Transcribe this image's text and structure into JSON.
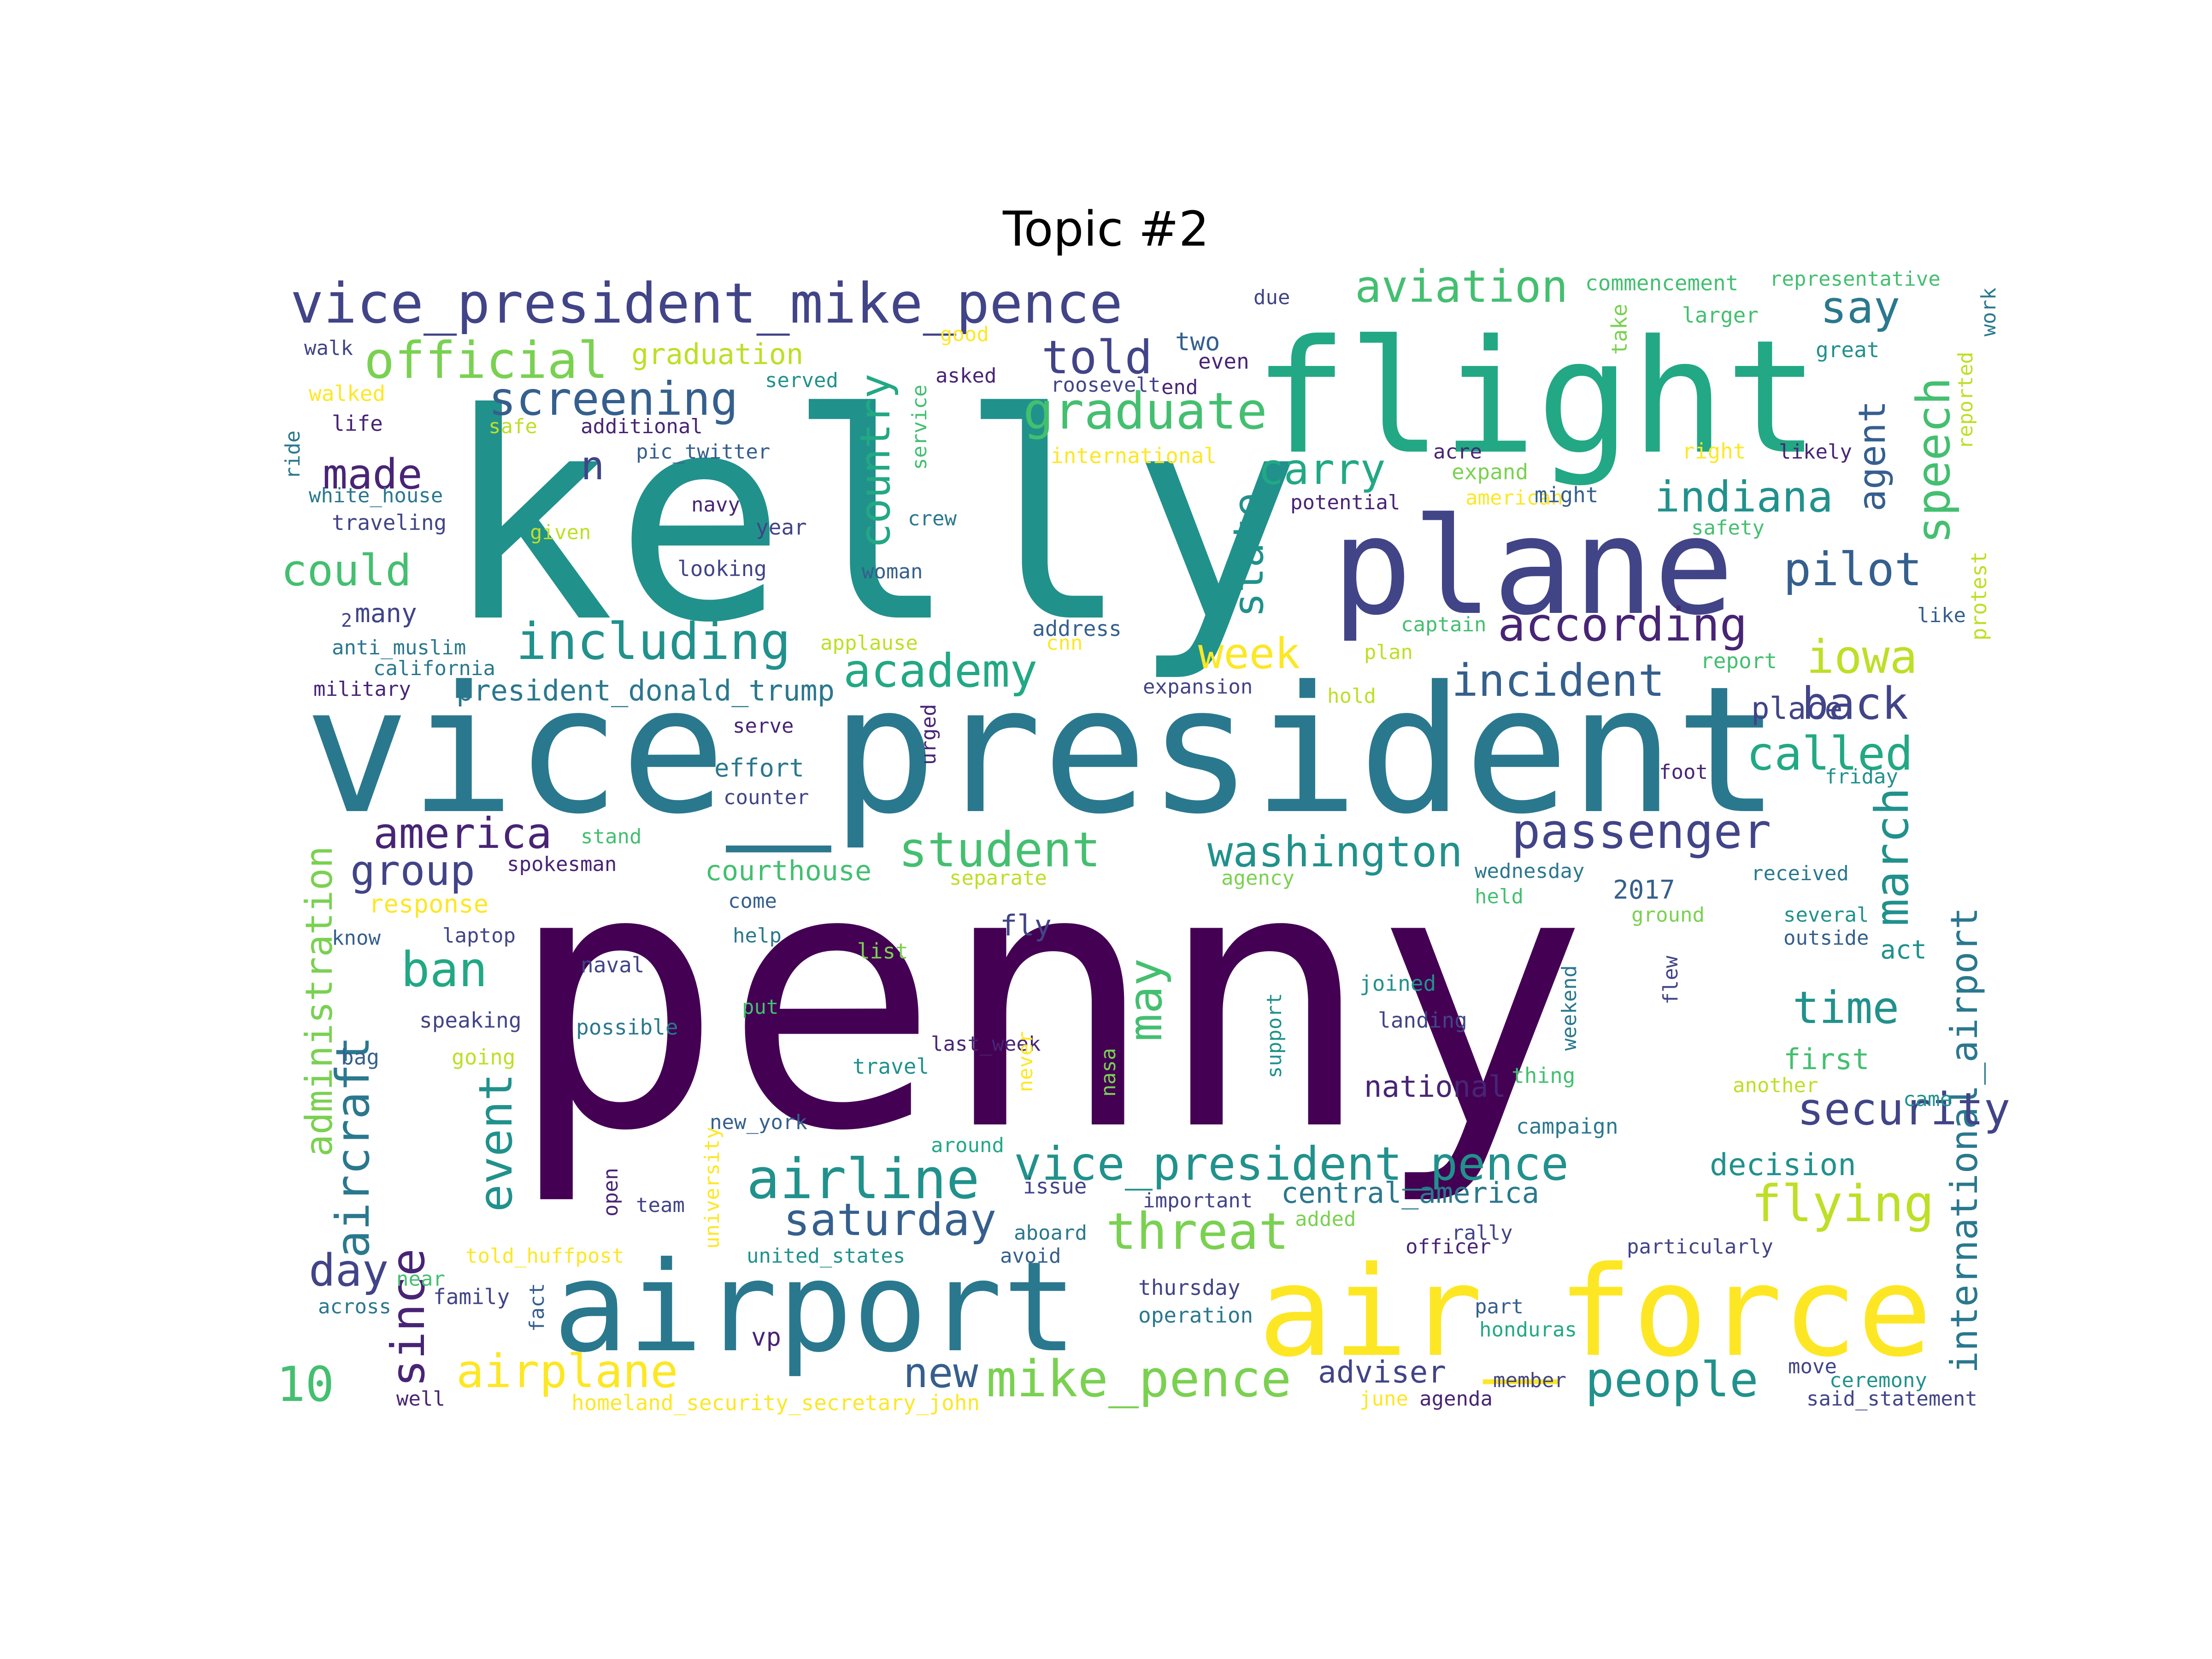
{
  "title": "Topic #2",
  "palette": {
    "p1": "#440154",
    "p2": "#482475",
    "p3": "#414487",
    "p4": "#355f8d",
    "p5": "#2a788e",
    "p6": "#21918c",
    "p7": "#22a884",
    "p8": "#44bf70",
    "p9": "#7ad151",
    "p10": "#bddf26",
    "p11": "#fde725"
  },
  "words": [
    {
      "text": "penny",
      "color": "#440154"
    },
    {
      "text": "kelly",
      "color": "#21918c"
    },
    {
      "text": "vice_president",
      "color": "#2a788e"
    },
    {
      "text": "flight",
      "color": "#22a884"
    },
    {
      "text": "airport",
      "color": "#2a788e"
    },
    {
      "text": "air_force",
      "color": "#fde725"
    },
    {
      "text": "plane",
      "color": "#414487"
    },
    {
      "text": "vice_president_mike_pence",
      "color": "#414487"
    },
    {
      "text": "official",
      "color": "#7ad151"
    },
    {
      "text": "aviation",
      "color": "#44bf70"
    },
    {
      "text": "say",
      "color": "#2a788e"
    },
    {
      "text": "graduation",
      "color": "#bddf26"
    },
    {
      "text": "told",
      "color": "#414487"
    },
    {
      "text": "graduate",
      "color": "#44bf70"
    },
    {
      "text": "screening",
      "color": "#355f8d"
    },
    {
      "text": "country",
      "color": "#22a884"
    },
    {
      "text": "made",
      "color": "#482475"
    },
    {
      "text": "n",
      "color": "#414487"
    },
    {
      "text": "carry",
      "color": "#22a884"
    },
    {
      "text": "indiana",
      "color": "#21918c"
    },
    {
      "text": "speech",
      "color": "#44bf70"
    },
    {
      "text": "agent",
      "color": "#355f8d"
    },
    {
      "text": "could",
      "color": "#44bf70"
    },
    {
      "text": "state",
      "color": "#21918c"
    },
    {
      "text": "pilot",
      "color": "#355f8d"
    },
    {
      "text": "including",
      "color": "#21918c"
    },
    {
      "text": "according",
      "color": "#482475"
    },
    {
      "text": "week",
      "color": "#fde725"
    },
    {
      "text": "iowa",
      "color": "#bddf26"
    },
    {
      "text": "academy",
      "color": "#22a884"
    },
    {
      "text": "incident",
      "color": "#355f8d"
    },
    {
      "text": "president_donald_trump",
      "color": "#2a788e"
    },
    {
      "text": "back",
      "color": "#414487"
    },
    {
      "text": "place",
      "color": "#414487"
    },
    {
      "text": "called",
      "color": "#22a884"
    },
    {
      "text": "administration",
      "color": "#7ad151"
    },
    {
      "text": "america",
      "color": "#482475"
    },
    {
      "text": "passenger",
      "color": "#414487"
    },
    {
      "text": "student",
      "color": "#44bf70"
    },
    {
      "text": "washington",
      "color": "#21918c"
    },
    {
      "text": "march",
      "color": "#21918c"
    },
    {
      "text": "international_airport",
      "color": "#2a788e"
    },
    {
      "text": "group",
      "color": "#414487"
    },
    {
      "text": "aircraft",
      "color": "#2a788e"
    },
    {
      "text": "ban",
      "color": "#22a884"
    },
    {
      "text": "may",
      "color": "#44bf70"
    },
    {
      "text": "time",
      "color": "#21918c"
    },
    {
      "text": "first",
      "color": "#44bf70"
    },
    {
      "text": "security",
      "color": "#414487"
    },
    {
      "text": "national",
      "color": "#482475"
    },
    {
      "text": "event",
      "color": "#21918c"
    },
    {
      "text": "since",
      "color": "#482475"
    },
    {
      "text": "vice_president_pence",
      "color": "#21918c"
    },
    {
      "text": "airline",
      "color": "#21918c"
    },
    {
      "text": "saturday",
      "color": "#355f8d"
    },
    {
      "text": "threat",
      "color": "#7ad151"
    },
    {
      "text": "central_america",
      "color": "#2a788e"
    },
    {
      "text": "decision",
      "color": "#21918c"
    },
    {
      "text": "flying",
      "color": "#bddf26"
    },
    {
      "text": "day",
      "color": "#414487"
    },
    {
      "text": "10",
      "color": "#44bf70"
    },
    {
      "text": "airplane",
      "color": "#fde725"
    },
    {
      "text": "new",
      "color": "#355f8d"
    },
    {
      "text": "mike_pence",
      "color": "#7ad151"
    },
    {
      "text": "people",
      "color": "#21918c"
    },
    {
      "text": "adviser",
      "color": "#414487"
    },
    {
      "text": "homeland_security_secretary_john",
      "color": "#fde725"
    },
    {
      "text": "commencement",
      "color": "#44bf70"
    },
    {
      "text": "representative",
      "color": "#44bf70"
    },
    {
      "text": "due",
      "color": "#414487"
    },
    {
      "text": "work",
      "color": "#2a788e"
    },
    {
      "text": "walk",
      "color": "#414487"
    },
    {
      "text": "good",
      "color": "#fde725"
    },
    {
      "text": "two",
      "color": "#355f8d"
    },
    {
      "text": "even",
      "color": "#482475"
    },
    {
      "text": "take",
      "color": "#7ad151"
    },
    {
      "text": "larger",
      "color": "#44bf70"
    },
    {
      "text": "great",
      "color": "#21918c"
    },
    {
      "text": "walked",
      "color": "#fde725"
    },
    {
      "text": "served",
      "color": "#21918c"
    },
    {
      "text": "asked",
      "color": "#482475"
    },
    {
      "text": "roosevelt",
      "color": "#414487"
    },
    {
      "text": "end",
      "color": "#482475"
    },
    {
      "text": "reported",
      "color": "#bddf26"
    },
    {
      "text": "life",
      "color": "#482475"
    },
    {
      "text": "safe",
      "color": "#bddf26"
    },
    {
      "text": "additional",
      "color": "#482475"
    },
    {
      "text": "service",
      "color": "#44bf70"
    },
    {
      "text": "ride",
      "color": "#2a788e"
    },
    {
      "text": "pic_twitter",
      "color": "#355f8d"
    },
    {
      "text": "international",
      "color": "#fde725"
    },
    {
      "text": "acre",
      "color": "#482475"
    },
    {
      "text": "right",
      "color": "#fde725"
    },
    {
      "text": "likely",
      "color": "#482475"
    },
    {
      "text": "white_house",
      "color": "#2a788e"
    },
    {
      "text": "expand",
      "color": "#7ad151"
    },
    {
      "text": "american",
      "color": "#fde725"
    },
    {
      "text": "might",
      "color": "#355f8d"
    },
    {
      "text": "potential",
      "color": "#482475"
    },
    {
      "text": "navy",
      "color": "#482475"
    },
    {
      "text": "crew",
      "color": "#2a788e"
    },
    {
      "text": "traveling",
      "color": "#414487"
    },
    {
      "text": "given",
      "color": "#bddf26"
    },
    {
      "text": "year",
      "color": "#414487"
    },
    {
      "text": "safety",
      "color": "#44bf70"
    },
    {
      "text": "looking",
      "color": "#414487"
    },
    {
      "text": "woman",
      "color": "#355f8d"
    },
    {
      "text": "protest",
      "color": "#bddf26"
    },
    {
      "text": "like",
      "color": "#355f8d"
    },
    {
      "text": "2",
      "color": "#414487"
    },
    {
      "text": "many",
      "color": "#414487"
    },
    {
      "text": "captain",
      "color": "#44bf70"
    },
    {
      "text": "address",
      "color": "#355f8d"
    },
    {
      "text": "anti_muslim",
      "color": "#2a788e"
    },
    {
      "text": "applause",
      "color": "#bddf26"
    },
    {
      "text": "cnn",
      "color": "#fde725"
    },
    {
      "text": "plan",
      "color": "#bddf26"
    },
    {
      "text": "report",
      "color": "#44bf70"
    },
    {
      "text": "california",
      "color": "#2a788e"
    },
    {
      "text": "military",
      "color": "#482475"
    },
    {
      "text": "expansion",
      "color": "#414487"
    },
    {
      "text": "hold",
      "color": "#bddf26"
    },
    {
      "text": "urged",
      "color": "#482475"
    },
    {
      "text": "serve",
      "color": "#482475"
    },
    {
      "text": "effort",
      "color": "#2a788e"
    },
    {
      "text": "friday",
      "color": "#21918c"
    },
    {
      "text": "foot",
      "color": "#482475"
    },
    {
      "text": "counter",
      "color": "#414487"
    },
    {
      "text": "stand",
      "color": "#44bf70"
    },
    {
      "text": "spokesman",
      "color": "#482475"
    },
    {
      "text": "courthouse",
      "color": "#44bf70"
    },
    {
      "text": "separate",
      "color": "#bddf26"
    },
    {
      "text": "agency",
      "color": "#7ad151"
    },
    {
      "text": "wednesday",
      "color": "#2a788e"
    },
    {
      "text": "received",
      "color": "#2a788e"
    },
    {
      "text": "response",
      "color": "#fde725"
    },
    {
      "text": "come",
      "color": "#355f8d"
    },
    {
      "text": "held",
      "color": "#44bf70"
    },
    {
      "text": "2017",
      "color": "#355f8d"
    },
    {
      "text": "ground",
      "color": "#7ad151"
    },
    {
      "text": "several",
      "color": "#21918c"
    },
    {
      "text": "know",
      "color": "#355f8d"
    },
    {
      "text": "laptop",
      "color": "#414487"
    },
    {
      "text": "help",
      "color": "#2a788e"
    },
    {
      "text": "list",
      "color": "#7ad151"
    },
    {
      "text": "fly",
      "color": "#414487"
    },
    {
      "text": "outside",
      "color": "#355f8d"
    },
    {
      "text": "act",
      "color": "#21918c"
    },
    {
      "text": "naval",
      "color": "#414487"
    },
    {
      "text": "flew",
      "color": "#414487"
    },
    {
      "text": "joined",
      "color": "#21918c"
    },
    {
      "text": "speaking",
      "color": "#414487"
    },
    {
      "text": "put",
      "color": "#44bf70"
    },
    {
      "text": "possible",
      "color": "#2a788e"
    },
    {
      "text": "weekend",
      "color": "#2a788e"
    },
    {
      "text": "landing",
      "color": "#414487"
    },
    {
      "text": "support",
      "color": "#21918c"
    },
    {
      "text": "last_week",
      "color": "#482475"
    },
    {
      "text": "bag",
      "color": "#355f8d"
    },
    {
      "text": "going",
      "color": "#bddf26"
    },
    {
      "text": "travel",
      "color": "#21918c"
    },
    {
      "text": "never",
      "color": "#fde725"
    },
    {
      "text": "nasa",
      "color": "#7ad151"
    },
    {
      "text": "thing",
      "color": "#44bf70"
    },
    {
      "text": "another",
      "color": "#bddf26"
    },
    {
      "text": "came",
      "color": "#21918c"
    },
    {
      "text": "new_york",
      "color": "#355f8d"
    },
    {
      "text": "campaign",
      "color": "#2a788e"
    },
    {
      "text": "around",
      "color": "#22a884"
    },
    {
      "text": "issue",
      "color": "#414487"
    },
    {
      "text": "team",
      "color": "#414487"
    },
    {
      "text": "university",
      "color": "#fde725"
    },
    {
      "text": "open",
      "color": "#482475"
    },
    {
      "text": "important",
      "color": "#414487"
    },
    {
      "text": "added",
      "color": "#7ad151"
    },
    {
      "text": "rally",
      "color": "#414487"
    },
    {
      "text": "aboard",
      "color": "#2a788e"
    },
    {
      "text": "avoid",
      "color": "#355f8d"
    },
    {
      "text": "particularly",
      "color": "#414487"
    },
    {
      "text": "officer",
      "color": "#482475"
    },
    {
      "text": "told_huffpost",
      "color": "#fde725"
    },
    {
      "text": "united_states",
      "color": "#21918c"
    },
    {
      "text": "near",
      "color": "#44bf70"
    },
    {
      "text": "family",
      "color": "#414487"
    },
    {
      "text": "across",
      "color": "#2a788e"
    },
    {
      "text": "fact",
      "color": "#355f8d"
    },
    {
      "text": "thursday",
      "color": "#414487"
    },
    {
      "text": "part",
      "color": "#355f8d"
    },
    {
      "text": "operation",
      "color": "#2a788e"
    },
    {
      "text": "honduras",
      "color": "#22a884"
    },
    {
      "text": "vp",
      "color": "#482475"
    },
    {
      "text": "move",
      "color": "#414487"
    },
    {
      "text": "member",
      "color": "#414487"
    },
    {
      "text": "ceremony",
      "color": "#21918c"
    },
    {
      "text": "well",
      "color": "#482475"
    },
    {
      "text": "june",
      "color": "#fde725"
    },
    {
      "text": "agenda",
      "color": "#482475"
    },
    {
      "text": "said_statement",
      "color": "#414487"
    }
  ]
}
